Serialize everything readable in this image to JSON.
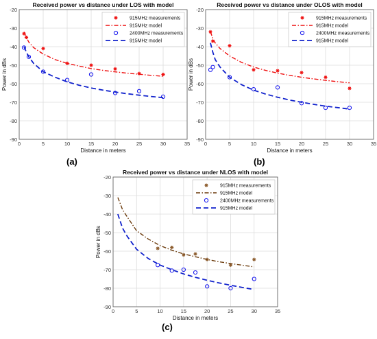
{
  "captions": [
    "(a)",
    "(b)",
    "(c)"
  ],
  "chart_data": [
    {
      "type": "line",
      "title": "Received power vs distance under LOS with model",
      "xlabel": "Distance in meters",
      "ylabel": "Power in dBs",
      "xlim": [
        0,
        35
      ],
      "ylim": [
        -90,
        -20
      ],
      "xticks": [
        0,
        5,
        10,
        15,
        20,
        25,
        30,
        35
      ],
      "yticks": [
        -90,
        -80,
        -70,
        -60,
        -50,
        -40,
        -30,
        -20
      ],
      "legend_position": "top-right",
      "series": [
        {
          "name": "915MHz measurements",
          "kind": "scatter",
          "marker": "star",
          "color": "#ee1111",
          "x": [
            1,
            1.5,
            5,
            10,
            15,
            20,
            25,
            30
          ],
          "y": [
            -33,
            -35,
            -41,
            -49,
            -50,
            -52,
            -54.5,
            -55
          ]
        },
        {
          "name": "915MHz model",
          "kind": "line",
          "style": "dashdot",
          "color": "#ee1111",
          "x": [
            1,
            1.5,
            2,
            3,
            5,
            7.5,
            10,
            12.5,
            15,
            17.5,
            20,
            22.5,
            25,
            27.5,
            30
          ],
          "y": [
            -32,
            -35,
            -37.5,
            -40.5,
            -44,
            -47,
            -49,
            -50.5,
            -51.8,
            -52.8,
            -53.6,
            -54.3,
            -54.9,
            -55.5,
            -56
          ]
        },
        {
          "name": "2400MHz measurements",
          "kind": "scatter",
          "marker": "circle",
          "color": "#1111ee",
          "x": [
            1,
            2,
            5,
            10,
            15,
            20,
            25,
            30
          ],
          "y": [
            -40.5,
            -45.5,
            -53.5,
            -58,
            -55,
            -65,
            -64,
            -67
          ]
        },
        {
          "name": "915MHz model",
          "kind": "line",
          "style": "dashed",
          "color": "#1122cc",
          "x": [
            1,
            1.5,
            2,
            3,
            5,
            7.5,
            10,
            12.5,
            15,
            17.5,
            20,
            22.5,
            25,
            27.5,
            30
          ],
          "y": [
            -40,
            -43,
            -45.5,
            -49,
            -53.5,
            -56.5,
            -59,
            -60.8,
            -62.3,
            -63.5,
            -64.5,
            -65.4,
            -66.2,
            -66.9,
            -67.5
          ]
        }
      ]
    },
    {
      "type": "line",
      "title": "Received power vs distance under OLOS with model",
      "xlabel": "Distance in meters",
      "ylabel": "Power in dBs",
      "xlim": [
        0,
        35
      ],
      "ylim": [
        -90,
        -20
      ],
      "xticks": [
        0,
        5,
        10,
        15,
        20,
        25,
        30,
        35
      ],
      "yticks": [
        -90,
        -80,
        -70,
        -60,
        -50,
        -40,
        -30,
        -20
      ],
      "legend_position": "top-right",
      "series": [
        {
          "name": "915MHz measurements",
          "kind": "scatter",
          "marker": "star",
          "color": "#ee1111",
          "x": [
            1,
            1.5,
            5,
            10,
            15,
            20,
            25,
            30
          ],
          "y": [
            -32,
            -37,
            -39.5,
            -52.5,
            -53,
            -54,
            -56.5,
            -62.5
          ]
        },
        {
          "name": "915MHz model",
          "kind": "line",
          "style": "dashdot",
          "color": "#ee1111",
          "x": [
            1,
            1.5,
            2,
            3,
            5,
            7.5,
            10,
            12.5,
            15,
            17.5,
            20,
            22.5,
            25,
            27.5,
            30
          ],
          "y": [
            -32,
            -35.5,
            -38,
            -41,
            -45,
            -48.5,
            -51,
            -52.8,
            -54.3,
            -55.5,
            -56.5,
            -57.4,
            -58.2,
            -58.9,
            -59.5
          ]
        },
        {
          "name": "2400MHz measurements",
          "kind": "scatter",
          "marker": "circle",
          "color": "#1111ee",
          "x": [
            1,
            1.5,
            5,
            10,
            15,
            20,
            25,
            30
          ],
          "y": [
            -52.5,
            -51,
            -56.5,
            -63,
            -62,
            -70.5,
            -73,
            -73
          ]
        },
        {
          "name": "915MHz model",
          "kind": "line",
          "style": "dashed",
          "color": "#1122cc",
          "x": [
            1,
            1.5,
            2,
            3,
            5,
            7.5,
            10,
            12.5,
            15,
            17.5,
            20,
            22.5,
            25,
            27.5,
            30
          ],
          "y": [
            -38,
            -43,
            -47,
            -51,
            -56.5,
            -60.5,
            -63.5,
            -65.6,
            -67.3,
            -68.8,
            -70,
            -71.1,
            -72.1,
            -72.9,
            -73.7
          ]
        }
      ]
    },
    {
      "type": "line",
      "title": "Received power vs distance under NLOS with model",
      "xlabel": "Distance in meters",
      "ylabel": "Power in dBs",
      "xlim": [
        0,
        35
      ],
      "ylim": [
        -90,
        -20
      ],
      "xticks": [
        0,
        5,
        10,
        15,
        20,
        25,
        30,
        35
      ],
      "yticks": [
        -90,
        -80,
        -70,
        -60,
        -50,
        -40,
        -30,
        -20
      ],
      "legend_position": "top-right",
      "series": [
        {
          "name": "915MHz measurements",
          "kind": "scatter",
          "marker": "star",
          "color": "#8b5a2b",
          "x": [
            9.5,
            12.5,
            15,
            17.5,
            20,
            25,
            30
          ],
          "y": [
            -58.5,
            -58,
            -62,
            -61.5,
            -64.5,
            -67.5,
            -64.5
          ]
        },
        {
          "name": "915MHz model",
          "kind": "line",
          "style": "dashdot",
          "color": "#6b3a0b",
          "x": [
            1,
            2,
            3,
            5,
            7.5,
            10,
            12.5,
            15,
            17.5,
            20,
            22.5,
            25,
            27.5,
            30
          ],
          "y": [
            -31,
            -37.5,
            -41.5,
            -49,
            -53.5,
            -57,
            -59.5,
            -61.5,
            -63,
            -64.5,
            -65.7,
            -66.7,
            -67.6,
            -68.5
          ]
        },
        {
          "name": "2400MHz measurements",
          "kind": "scatter",
          "marker": "circle",
          "color": "#1111ee",
          "x": [
            9.5,
            12.5,
            15,
            17.5,
            20,
            25,
            30
          ],
          "y": [
            -67.5,
            -70.5,
            -70,
            -71.5,
            -79,
            -80,
            -75
          ]
        },
        {
          "name": "915MHz model",
          "kind": "line",
          "style": "dashed",
          "color": "#1122cc",
          "x": [
            1,
            2,
            3,
            5,
            7.5,
            10,
            12.5,
            15,
            17.5,
            20,
            22.5,
            25,
            27.5,
            30
          ],
          "y": [
            -40,
            -47.5,
            -52,
            -59,
            -64,
            -67.5,
            -70,
            -72.3,
            -74.1,
            -75.7,
            -77.1,
            -78.4,
            -79.6,
            -80.7
          ]
        }
      ]
    }
  ]
}
